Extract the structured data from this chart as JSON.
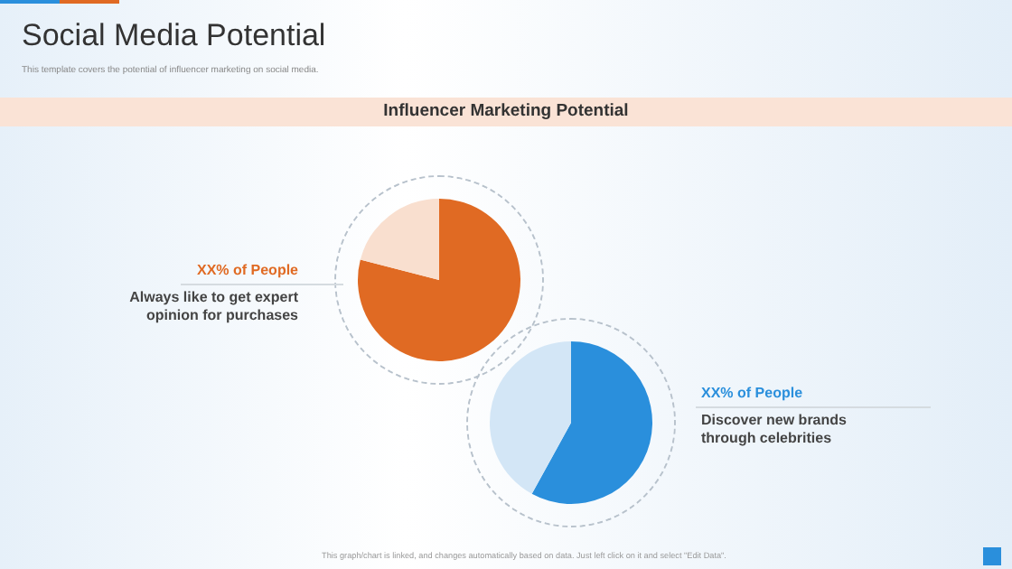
{
  "chart_data": [
    {
      "type": "pie",
      "title": "Social Media Potential",
      "subtitle": "This template covers the potential of influencer marketing on social media.",
      "categories": [
        null,
        null
      ],
      "values": [
        79,
        21
      ],
      "colors": [
        "#e06a23",
        "#f9dfcf"
      ],
      "legend": false,
      "annotations": [
        "Influencer Marketing Potential",
        "XX% of People",
        "Always like to get expert opinion for purchases",
        "This graph/chart is linked, and changes automatically based on data. Just left click on it and select \"Edit Data\"."
      ]
    },
    {
      "type": "pie",
      "categories": [
        null,
        null
      ],
      "values": [
        58,
        42
      ],
      "colors": [
        "#2a8fdc",
        "#d3e6f6"
      ],
      "legend": false,
      "annotations": [
        "XX% of People",
        "Discover new brands through celebrities"
      ]
    }
  ]
}
